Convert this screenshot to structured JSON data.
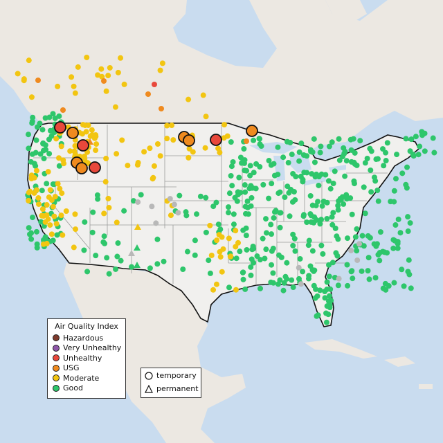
{
  "map": {
    "colors": {
      "ocean": "#c9dcef",
      "land": "#ece8e2",
      "us_land": "#f1f0ee",
      "border": "#111111",
      "state_lines": "#9a9a9a"
    },
    "aqi_legend": {
      "title": "Air Quality Index",
      "items": [
        {
          "label": "Hazardous",
          "color": "#7e3a2c"
        },
        {
          "label": "Very Unhealthy",
          "color": "#8e56a8"
        },
        {
          "label": "Unhealthy",
          "color": "#e8483b"
        },
        {
          "label": "USG",
          "color": "#ef8a1f"
        },
        {
          "label": "Moderate",
          "color": "#f2c511"
        },
        {
          "label": "Good",
          "color": "#2ec66b"
        }
      ]
    },
    "type_legend": {
      "items": [
        {
          "label": "temporary",
          "icon": "circle-icon"
        },
        {
          "label": "permanent",
          "icon": "triangle-icon"
        }
      ]
    },
    "no_data_color": "#b8b8b8"
  }
}
